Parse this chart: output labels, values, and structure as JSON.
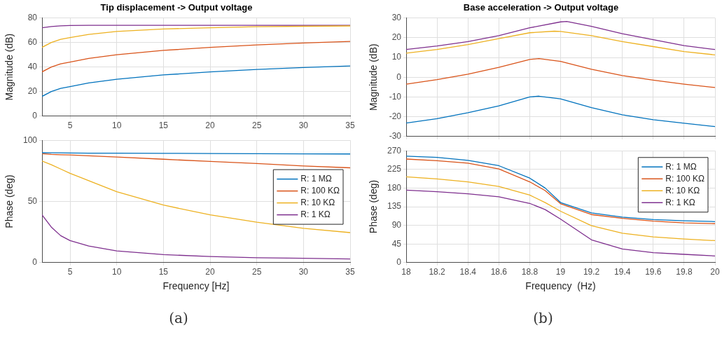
{
  "chart_data": [
    {
      "type": "line",
      "title": "Tip displacement -> Output voltage",
      "ylabel": "Magnitude (dB)",
      "xlim": [
        2,
        35
      ],
      "xticks": [
        5,
        10,
        15,
        20,
        25,
        30,
        35
      ],
      "ylim": [
        0,
        80
      ],
      "yticks": [
        0,
        20,
        40,
        60,
        80
      ],
      "grid": true,
      "marker": "none",
      "x": [
        2,
        3,
        4,
        5,
        7,
        10,
        15,
        20,
        25,
        30,
        35
      ],
      "series": [
        {
          "color": "#0072bd",
          "values": [
            16,
            20,
            22.5,
            24,
            27,
            30,
            33.5,
            36,
            38,
            39.5,
            40.8
          ]
        },
        {
          "color": "#d95319",
          "values": [
            36,
            40,
            42.5,
            44,
            47,
            50,
            53.5,
            56,
            58,
            59.5,
            60.8
          ]
        },
        {
          "color": "#edb120",
          "values": [
            56,
            60,
            62.5,
            64,
            66.5,
            69,
            71,
            72,
            72.8,
            73.2,
            73.5
          ]
        },
        {
          "color": "#7e2f8e",
          "values": [
            72,
            73,
            73.5,
            73.8,
            74,
            74,
            74,
            74,
            74,
            74,
            74
          ]
        }
      ]
    },
    {
      "type": "line",
      "xlabel": "Frequency [Hz]",
      "ylabel": "Phase (deg)",
      "xlim": [
        2,
        35
      ],
      "xticks": [
        5,
        10,
        15,
        20,
        25,
        30,
        35
      ],
      "ylim": [
        0,
        100
      ],
      "yticks": [
        0,
        50,
        100
      ],
      "grid": true,
      "marker": "none",
      "legend": "top right",
      "annotations": [
        "(a)"
      ],
      "x": [
        2,
        3,
        4,
        5,
        7,
        10,
        15,
        20,
        25,
        30,
        35
      ],
      "series": [
        {
          "name": "R: 1 MΩ",
          "color": "#0072bd",
          "values": [
            89.8,
            89.7,
            89.7,
            89.6,
            89.5,
            89.4,
            89.3,
            89.2,
            89,
            88.9,
            88.8
          ]
        },
        {
          "name": "R: 100 KΩ",
          "color": "#d95319",
          "values": [
            89,
            88.5,
            88.2,
            88,
            87.3,
            86.3,
            84.5,
            82.7,
            81,
            79,
            77.5
          ]
        },
        {
          "name": "R: 10 KΩ",
          "color": "#edb120",
          "values": [
            83,
            80,
            76.5,
            73,
            67,
            58,
            47,
            39,
            33,
            28,
            24.5
          ]
        },
        {
          "name": "R: 1 KΩ",
          "color": "#7e2f8e",
          "values": [
            39,
            29,
            22,
            18,
            13.5,
            9.5,
            6.5,
            5,
            4,
            3.5,
            3
          ]
        }
      ]
    },
    {
      "type": "line",
      "title": "Base acceleration -> Output voltage",
      "ylabel": "Magnitude (dB)",
      "xlim": [
        18,
        20
      ],
      "xticks": [
        18,
        18.2,
        18.4,
        18.6,
        18.8,
        19,
        19.2,
        19.4,
        19.6,
        19.8,
        20
      ],
      "ylim": [
        -30,
        30
      ],
      "yticks": [
        -30,
        -20,
        -10,
        0,
        10,
        20,
        30
      ],
      "grid": true,
      "marker": "none",
      "tick_labels": "y",
      "series": [
        {
          "color": "#0072bd",
          "x": [
            18,
            18.2,
            18.4,
            18.6,
            18.8,
            18.86,
            19,
            19.2,
            19.4,
            19.6,
            19.8,
            20
          ],
          "values": [
            -23.2,
            -21,
            -18,
            -14.5,
            -10,
            -9.6,
            -11,
            -15.4,
            -19,
            -21.5,
            -23.3,
            -25
          ]
        },
        {
          "color": "#d95319",
          "x": [
            18,
            18.2,
            18.4,
            18.6,
            18.8,
            18.86,
            19,
            19.2,
            19.4,
            19.6,
            19.8,
            20
          ],
          "values": [
            -3.5,
            -1.2,
            1.5,
            5,
            9,
            9.4,
            8,
            4,
            0.8,
            -1.5,
            -3.5,
            -5.2
          ]
        },
        {
          "color": "#edb120",
          "x": [
            18,
            18.2,
            18.4,
            18.6,
            18.8,
            18.96,
            19,
            19.2,
            19.4,
            19.6,
            19.8,
            20
          ],
          "values": [
            12.2,
            14,
            16.5,
            19.5,
            22.5,
            23.3,
            23.2,
            21,
            18,
            15.5,
            13,
            11.3
          ]
        },
        {
          "color": "#7e2f8e",
          "x": [
            18,
            18.2,
            18.4,
            18.6,
            18.8,
            19,
            19.04,
            19.2,
            19.4,
            19.6,
            19.8,
            20
          ],
          "values": [
            14,
            15.8,
            18,
            21,
            25,
            28,
            28.2,
            25.7,
            22,
            19,
            16,
            14
          ]
        }
      ]
    },
    {
      "type": "line",
      "xlabel": "Frequency  (Hz)",
      "ylabel": "Phase (deg)",
      "xlim": [
        18,
        20
      ],
      "xticks": [
        18,
        18.2,
        18.4,
        18.6,
        18.8,
        19,
        19.2,
        19.4,
        19.6,
        19.8,
        20
      ],
      "ylim": [
        0,
        270
      ],
      "yticks": [
        0,
        45,
        90,
        135,
        180,
        225,
        270
      ],
      "grid": true,
      "marker": "none",
      "legend": "top right",
      "annotations": [
        "(b)"
      ],
      "x": [
        18,
        18.2,
        18.4,
        18.6,
        18.8,
        18.9,
        19,
        19.2,
        19.4,
        19.6,
        19.8,
        20
      ],
      "series": [
        {
          "name": "R: 1 MΩ",
          "color": "#0072bd",
          "values": [
            257,
            254,
            247,
            234,
            204,
            180,
            145,
            120,
            110,
            104,
            101,
            99
          ]
        },
        {
          "name": "R: 100 KΩ",
          "color": "#d95319",
          "values": [
            250,
            246,
            240,
            226,
            195,
            174,
            142,
            116,
            107,
            100,
            96,
            94
          ]
        },
        {
          "name": "R: 10 KΩ",
          "color": "#edb120",
          "values": [
            207,
            202,
            195,
            184,
            163,
            145,
            124,
            89,
            71,
            62,
            57,
            53
          ]
        },
        {
          "name": "R: 1 KΩ",
          "color": "#7e2f8e",
          "values": [
            175,
            171,
            166,
            159,
            143,
            128,
            105,
            55,
            33,
            24,
            20,
            16
          ]
        }
      ]
    }
  ]
}
